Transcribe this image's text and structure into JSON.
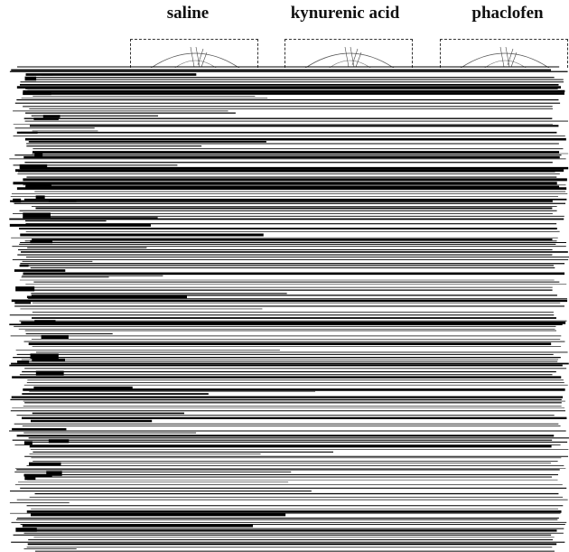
{
  "columns": [
    {
      "title": "saline"
    },
    {
      "title": "kynurenic acid"
    },
    {
      "title": "phaclofen"
    }
  ],
  "colors": {
    "ink": "#000000",
    "paper": "#ffffff"
  }
}
